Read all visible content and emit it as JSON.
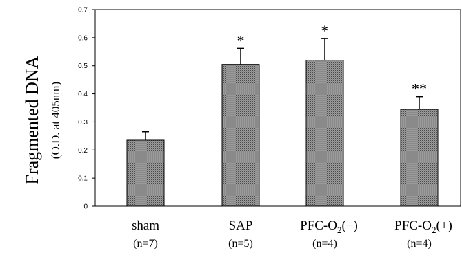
{
  "chart_data": {
    "type": "bar",
    "categories": [
      "sham",
      "SAP",
      "PFC-O2(−)",
      "PFC-O2(+)"
    ],
    "category_display": [
      {
        "base": "sham",
        "sub": "",
        "tail": ""
      },
      {
        "base": "SAP",
        "sub": "",
        "tail": ""
      },
      {
        "base": "PFC-O",
        "sub": "2",
        "tail": "(−)"
      },
      {
        "base": "PFC-O",
        "sub": "2",
        "tail": "(+)"
      }
    ],
    "n_labels": [
      "(n=7)",
      "(n=5)",
      "(n=4)",
      "(n=4)"
    ],
    "values": [
      0.235,
      0.505,
      0.52,
      0.345
    ],
    "errors": [
      0.03,
      0.057,
      0.077,
      0.045
    ],
    "significance": [
      "",
      "*",
      "*",
      "**"
    ],
    "ylabel": "Fragmented DNA",
    "ylabel_sub": "(O.D. at 405nm)",
    "ylim": [
      0,
      0.7
    ],
    "yticks": [
      "0",
      "0.1",
      "0.2",
      "0.3",
      "0.4",
      "0.5",
      "0.6",
      "0.7"
    ],
    "grid": false,
    "bar_fill": "#8c8c8c"
  }
}
